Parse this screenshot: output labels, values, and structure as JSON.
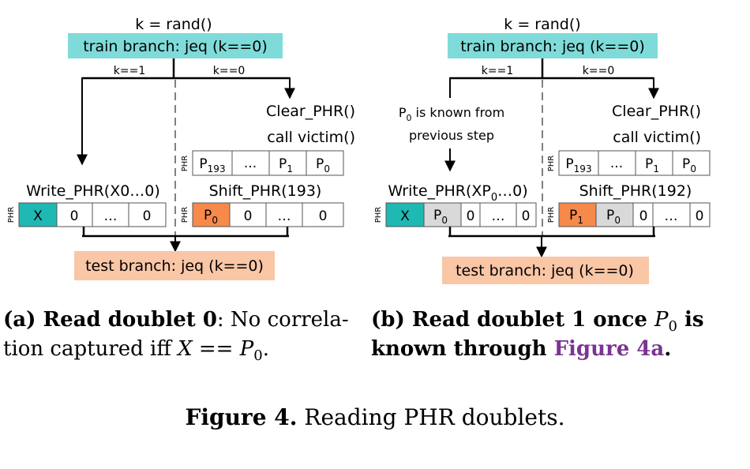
{
  "panel_a": {
    "top_label": "k = rand()",
    "train_label": "train branch: jeq (k==0)",
    "edge_left": "k==1",
    "edge_right": "k==0",
    "clear_label": "Clear_PHR()",
    "call_label": "call victim()",
    "phr_tag": "PHR",
    "victim_cells": [
      {
        "base": "P",
        "sub": "193"
      },
      {
        "base": "...",
        "sub": ""
      },
      {
        "base": "P",
        "sub": "1"
      },
      {
        "base": "P",
        "sub": "0"
      }
    ],
    "write_label": "Write_PHR(X0…0)",
    "write_cells": [
      "X",
      "0",
      "…",
      "0"
    ],
    "shift_label": "Shift_PHR(193)",
    "shift_cells": [
      {
        "base": "P",
        "sub": "0"
      },
      {
        "base": "0",
        "sub": ""
      },
      {
        "base": "…",
        "sub": ""
      },
      {
        "base": "0",
        "sub": ""
      }
    ],
    "test_label": "test branch: jeq (k==0)",
    "caption_bold": "(a) Read doublet 0",
    "caption_rest_line1": ": No correla-",
    "caption_line2_pre": "tion captured iff ",
    "caption_line2_x": "X",
    "caption_line2_eq": " == ",
    "caption_line2_p": "P",
    "caption_line2_sub": "0",
    "caption_line2_end": "."
  },
  "panel_b": {
    "top_label": "k = rand()",
    "train_label": "train branch: jeq (k==0)",
    "edge_left": "k==1",
    "edge_right": "k==0",
    "note_line1_p": "P",
    "note_line1_sub": "0",
    "note_line1_rest": " is known from",
    "note_line2": "previous step",
    "clear_label": "Clear_PHR()",
    "call_label": "call victim()",
    "phr_tag": "PHR",
    "victim_cells": [
      {
        "base": "P",
        "sub": "193"
      },
      {
        "base": "...",
        "sub": ""
      },
      {
        "base": "P",
        "sub": "1"
      },
      {
        "base": "P",
        "sub": "0"
      }
    ],
    "write_label_pre": "Write_PHR(XP",
    "write_label_sub": "0",
    "write_label_post": "…0)",
    "write_cells": [
      {
        "base": "X",
        "sub": ""
      },
      {
        "base": "P",
        "sub": "0"
      },
      {
        "base": "0",
        "sub": ""
      },
      {
        "base": "…",
        "sub": ""
      },
      {
        "base": "0",
        "sub": ""
      }
    ],
    "shift_label": "Shift_PHR(192)",
    "shift_cells": [
      {
        "base": "P",
        "sub": "1"
      },
      {
        "base": "P",
        "sub": "0"
      },
      {
        "base": "0",
        "sub": ""
      },
      {
        "base": "…",
        "sub": ""
      },
      {
        "base": "0",
        "sub": ""
      }
    ],
    "test_label": "test branch: jeq (k==0)",
    "caption_line1_bold": "(b) Read doublet 1 once ",
    "caption_line1_p": "P",
    "caption_line1_sub": "0",
    "caption_line1_is": " is",
    "caption_line2_bold": "known through ",
    "caption_line2_link": "Figure 4a",
    "caption_line2_end": "."
  },
  "figure_caption": {
    "bold": "Figure 4.",
    "rest": " Reading PHR doublets."
  },
  "colors": {
    "train_bg": "#7fdbd9",
    "test_bg": "#f9c6a6",
    "teal_cell": "#1fb8b3",
    "orange_cell": "#f7894a",
    "gray_cell": "#d9d9d9",
    "link": "#7a3590"
  }
}
